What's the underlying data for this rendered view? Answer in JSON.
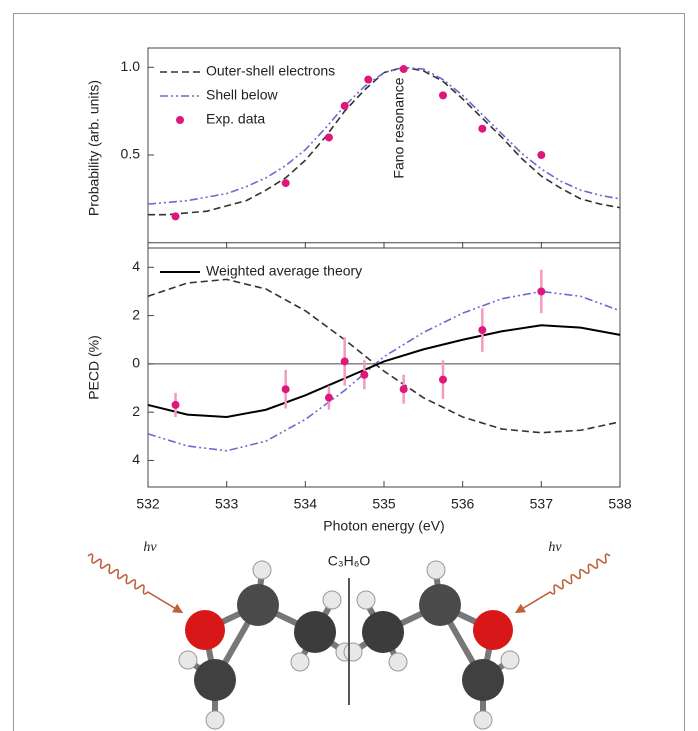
{
  "chart_data": [
    {
      "type": "line",
      "ylabel": "Probability (arb. units)",
      "annotation": "Fano resonance",
      "xlim": [
        532,
        538
      ],
      "ylim": [
        -0.03,
        1.11
      ],
      "yticks": [
        0.5,
        {
          "value": 1,
          "label": "1.0"
        }
      ],
      "legend": "upper left",
      "series": [
        {
          "name": "Outer-shell electrons",
          "color": "#333333",
          "style": "dashed",
          "x": [
            532,
            532.25,
            532.5,
            532.75,
            533,
            533.25,
            533.5,
            533.75,
            534,
            534.25,
            534.5,
            534.75,
            535,
            535.25,
            535.5,
            535.75,
            536,
            536.25,
            536.5,
            536.75,
            537,
            537.25,
            537.5,
            537.75,
            538
          ],
          "values": [
            0.16,
            0.16,
            0.17,
            0.18,
            0.21,
            0.24,
            0.3,
            0.37,
            0.47,
            0.6,
            0.75,
            0.87,
            0.97,
            1.0,
            0.98,
            0.92,
            0.82,
            0.71,
            0.6,
            0.48,
            0.38,
            0.31,
            0.25,
            0.22,
            0.2
          ]
        },
        {
          "name": "Shell below",
          "color": "#6a6ad0",
          "style": "dashdot",
          "x": [
            532,
            532.25,
            532.5,
            532.75,
            533,
            533.25,
            533.5,
            533.75,
            534,
            534.25,
            534.5,
            534.75,
            535,
            535.25,
            535.5,
            535.75,
            536,
            536.25,
            536.5,
            536.75,
            537,
            537.25,
            537.5,
            537.75,
            538
          ],
          "values": [
            0.22,
            0.23,
            0.24,
            0.26,
            0.28,
            0.32,
            0.37,
            0.44,
            0.53,
            0.65,
            0.78,
            0.89,
            0.97,
            1.0,
            0.99,
            0.93,
            0.84,
            0.73,
            0.62,
            0.51,
            0.42,
            0.35,
            0.3,
            0.27,
            0.25
          ]
        },
        {
          "name": "Exp. data",
          "color": "#e0177a",
          "style": "markers",
          "x": [
            532.35,
            533.75,
            534.3,
            534.5,
            534.8,
            535.25,
            535.75,
            536.25,
            537
          ],
          "values": [
            0.15,
            0.34,
            0.6,
            0.78,
            0.93,
            0.99,
            0.84,
            0.65,
            0.5
          ]
        }
      ]
    },
    {
      "type": "line",
      "xlabel": "Photon energy (eV)",
      "ylabel": "PECD (%)",
      "xlim": [
        532,
        538
      ],
      "xticks": [
        532,
        533,
        534,
        535,
        536,
        537,
        538
      ],
      "ylim": [
        -5.1,
        4.8
      ],
      "yticks": [
        4,
        2,
        0,
        {
          "value": -2,
          "label": "2"
        },
        {
          "value": -4,
          "label": "4"
        }
      ],
      "legend": "upper left",
      "series": [
        {
          "color": "#333333",
          "style": "dashed",
          "x": [
            532,
            532.5,
            533,
            533.5,
            534,
            534.5,
            535,
            535.5,
            536,
            536.5,
            537,
            537.5,
            538
          ],
          "values": [
            2.8,
            3.35,
            3.5,
            3.1,
            2.2,
            1.0,
            -0.3,
            -1.4,
            -2.2,
            -2.7,
            -2.85,
            -2.75,
            -2.4
          ]
        },
        {
          "color": "#6a6ad0",
          "style": "dashdot",
          "x": [
            532,
            532.5,
            533,
            533.5,
            534,
            534.5,
            535,
            535.5,
            536,
            536.5,
            537,
            537.5,
            538
          ],
          "values": [
            -2.9,
            -3.4,
            -3.6,
            -3.2,
            -2.3,
            -1.1,
            0.3,
            1.3,
            2.1,
            2.7,
            3.0,
            2.8,
            2.2
          ]
        },
        {
          "name": "Weighted average theory",
          "color": "#000000",
          "style": "solid",
          "x": [
            532,
            532.5,
            533,
            533.5,
            534,
            534.5,
            535,
            535.5,
            536,
            536.5,
            537,
            537.5,
            538
          ],
          "values": [
            -1.7,
            -2.1,
            -2.2,
            -1.9,
            -1.3,
            -0.6,
            0.1,
            0.6,
            1.0,
            1.35,
            1.6,
            1.5,
            1.2
          ]
        },
        {
          "color": "#e0177a",
          "style": "markers",
          "error_color": "#f29ac0",
          "x": [
            532.35,
            533.75,
            534.3,
            534.5,
            534.75,
            535.25,
            535.75,
            536.25,
            537
          ],
          "values": [
            -1.7,
            -1.05,
            -1.4,
            0.1,
            -0.45,
            -1.05,
            -0.65,
            1.4,
            3.0
          ],
          "errors": [
            0.5,
            0.8,
            0.5,
            1.0,
            0.6,
            0.6,
            0.8,
            0.9,
            0.9
          ]
        }
      ]
    }
  ],
  "illustration": {
    "photon_left": "hν",
    "photon_right": "hν",
    "formula": "C₃H₆O"
  }
}
